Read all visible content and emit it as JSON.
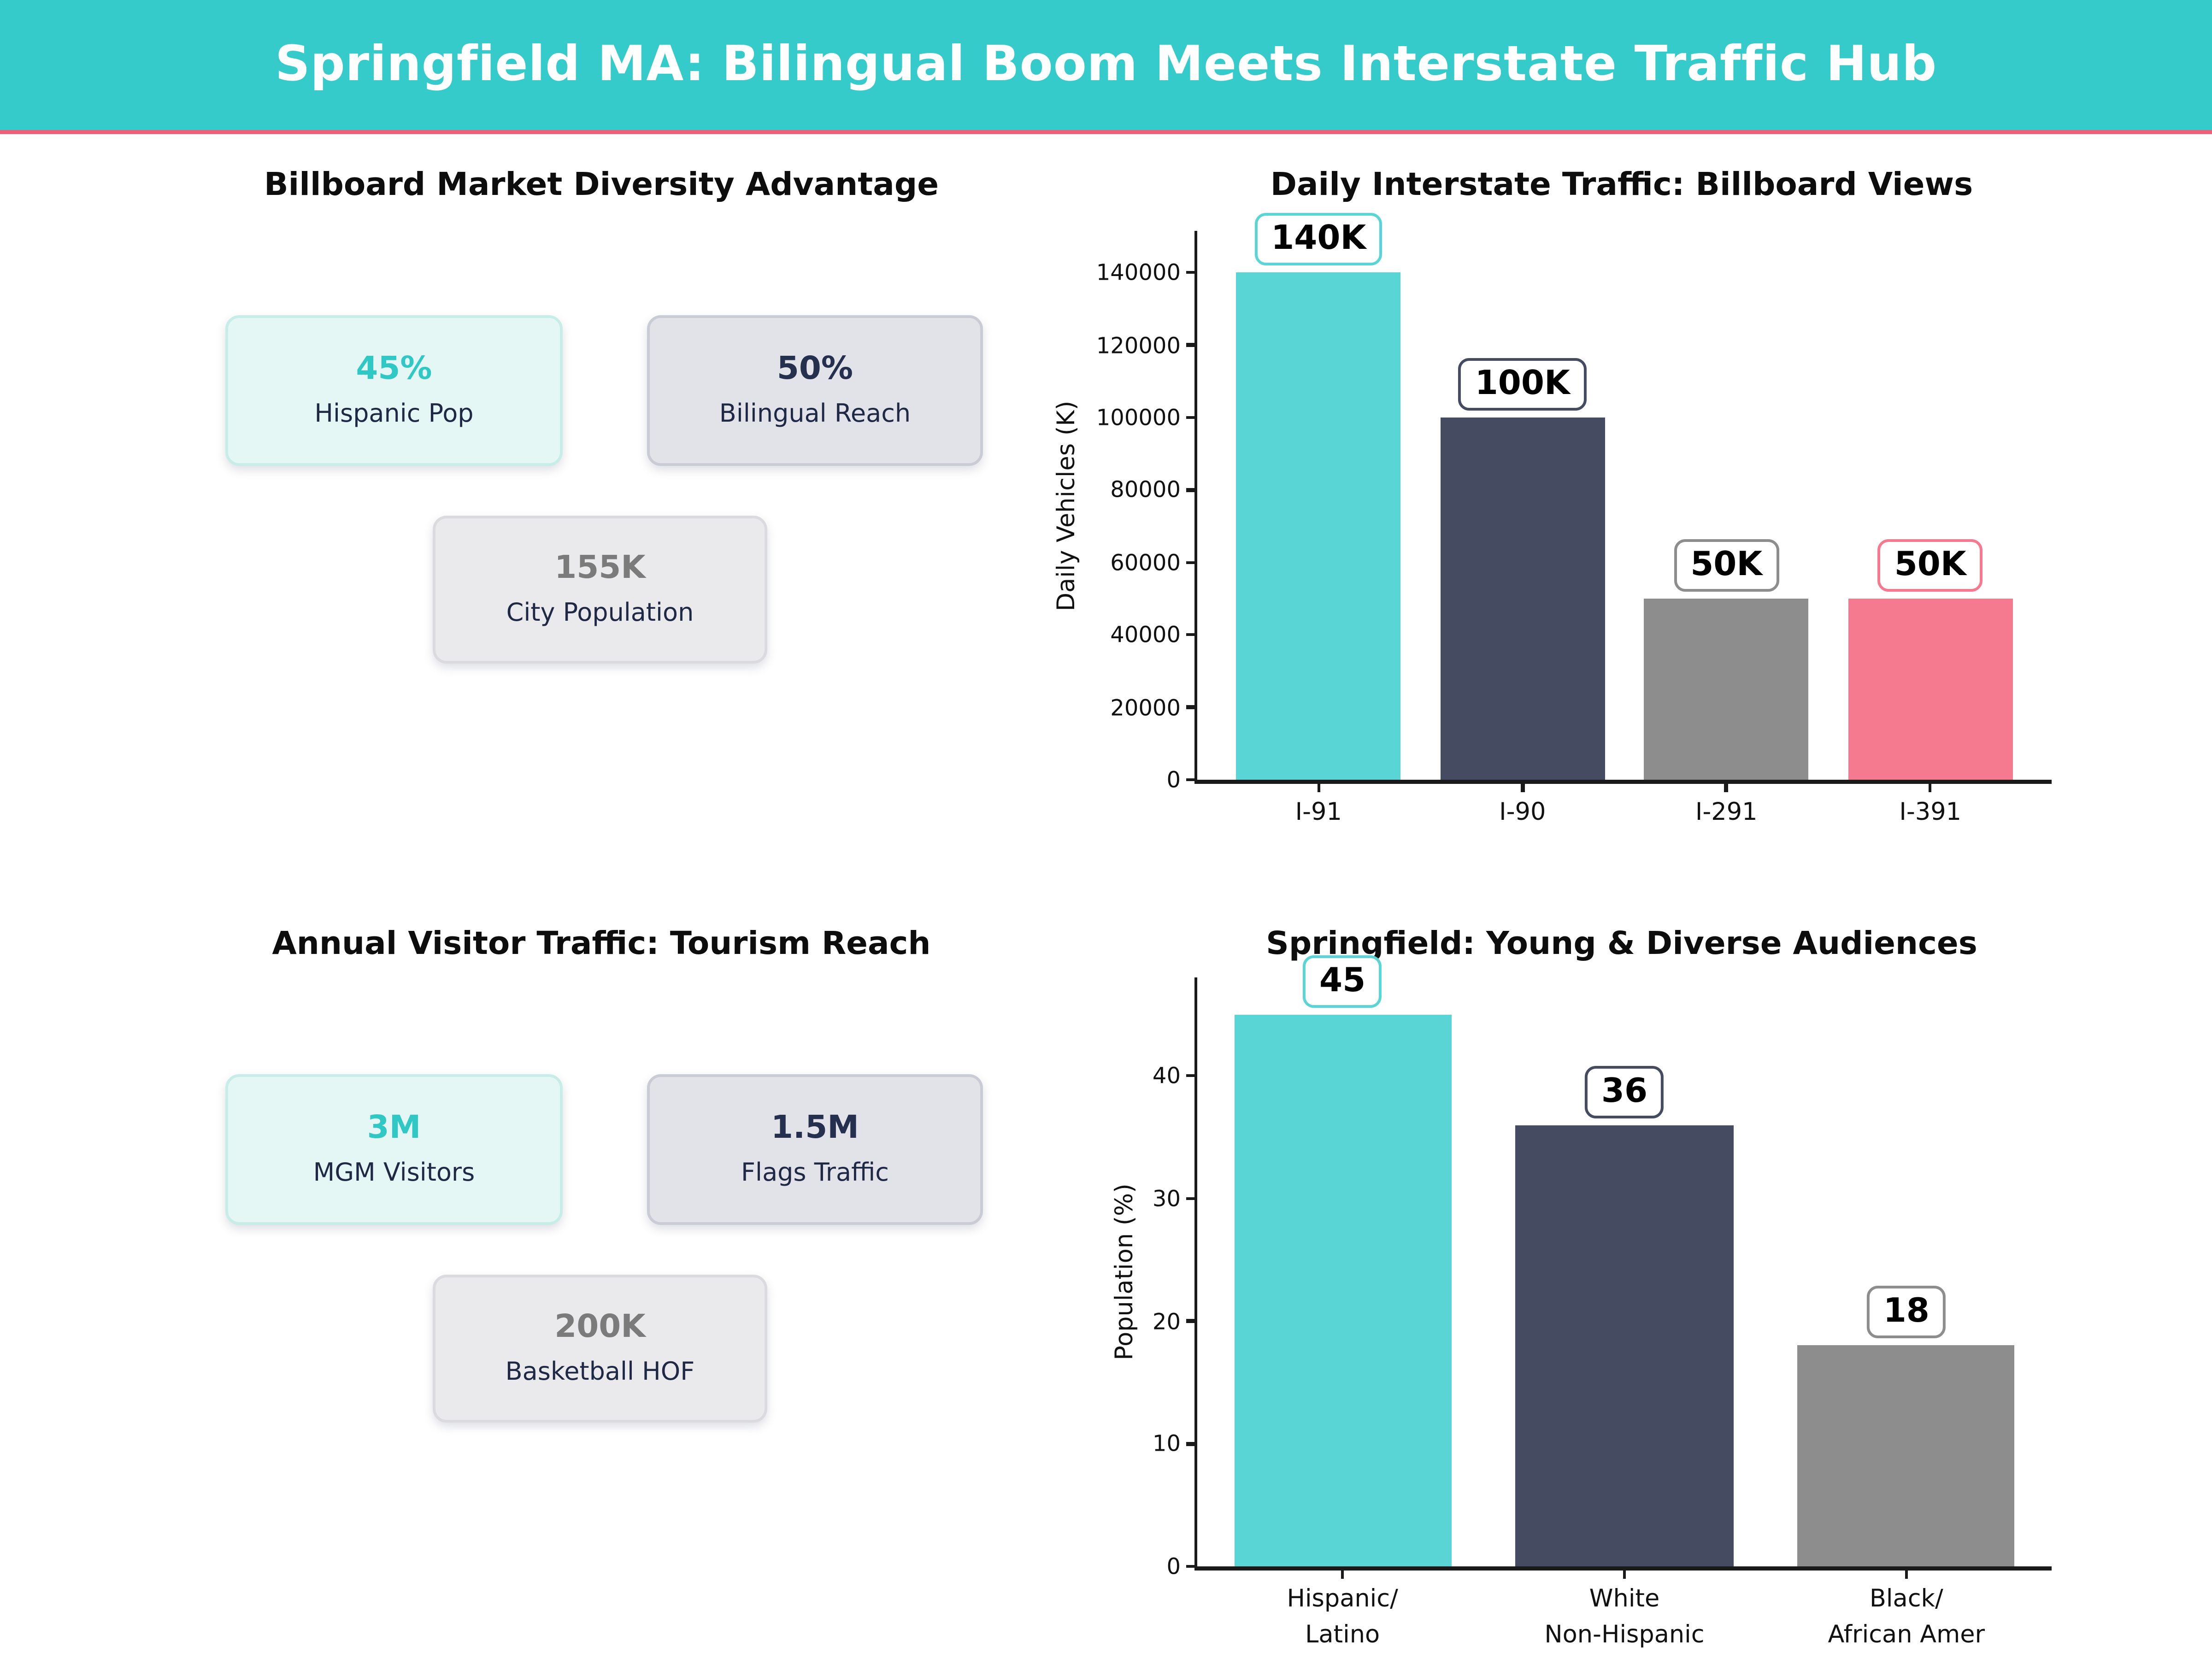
{
  "header": {
    "title": "Springfield MA: Bilingual Boom Meets Interstate Traffic Hub"
  },
  "colors": {
    "header_bg": "#35CBCB",
    "header_underline": "#EF5F77",
    "teal": "#5AD5D5",
    "navy": "#454B61",
    "gray": "#8D8D8D",
    "pink": "#F5798F",
    "value_teal": "#2FC8C5",
    "value_navy": "#252F4E",
    "value_gray": "#7B7B7B",
    "label_navy": "#1F2945"
  },
  "sections": {
    "diversity": {
      "title": "Billboard Market Diversity Advantage",
      "cards": [
        {
          "value": "45%",
          "label": "Hispanic Pop",
          "variant": "mint"
        },
        {
          "value": "50%",
          "label": "Bilingual Reach",
          "variant": "slate"
        },
        {
          "value": "155K",
          "label": "City Population",
          "variant": "light"
        }
      ]
    },
    "tourism": {
      "title": "Annual Visitor Traffic: Tourism Reach",
      "cards": [
        {
          "value": "3M",
          "label": "MGM Visitors",
          "variant": "mint"
        },
        {
          "value": "1.5M",
          "label": "Flags Traffic",
          "variant": "slate"
        },
        {
          "value": "200K",
          "label": "Basketball HOF",
          "variant": "light"
        }
      ]
    }
  },
  "chart_data": [
    {
      "type": "bar",
      "title": "Daily Interstate Traffic: Billboard Views",
      "categories": [
        "I-91",
        "I-90",
        "I-291",
        "I-391"
      ],
      "values": [
        140000,
        100000,
        50000,
        50000
      ],
      "bar_labels": [
        "140K",
        "100K",
        "50K",
        "50K"
      ],
      "colors": [
        "#5AD5D5",
        "#454B61",
        "#8D8D8D",
        "#F5798F"
      ],
      "xlabel": "",
      "ylabel": "Daily Vehicles (K)",
      "yticks": [
        0,
        20000,
        40000,
        60000,
        80000,
        100000,
        120000,
        140000
      ],
      "ylim": [
        0,
        151500
      ],
      "grid": false,
      "legend": "none",
      "pad_frac": 0.142,
      "bar_frac": 0.81
    },
    {
      "type": "bar",
      "title": "Springfield: Young & Diverse Audiences",
      "categories": [
        "Hispanic/\nLatino",
        "White\nNon-Hispanic",
        "Black/\nAfrican Amer"
      ],
      "values": [
        45,
        36,
        18
      ],
      "bar_labels": [
        "45",
        "36",
        "18"
      ],
      "colors": [
        "#5AD5D5",
        "#454B61",
        "#8D8D8D"
      ],
      "xlabel": "",
      "ylabel": "Population (%)",
      "yticks": [
        0,
        10,
        20,
        30,
        40
      ],
      "ylim": [
        0,
        48
      ],
      "grid": false,
      "legend": "none",
      "pad_frac": 0.17,
      "bar_frac": 0.77
    }
  ]
}
